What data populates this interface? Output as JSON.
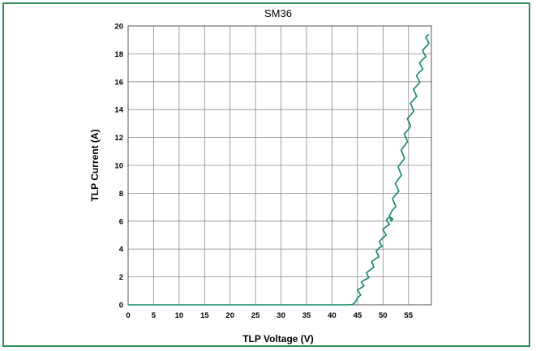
{
  "chart_data": {
    "type": "line",
    "title": "SM36",
    "xlabel": "TLP Voltage (V)",
    "ylabel": "TLP Current (A)",
    "xlim": [
      0,
      59.5
    ],
    "ylim": [
      0,
      20
    ],
    "xticks": [
      "0",
      "5",
      "10",
      "15",
      "20",
      "25",
      "30",
      "35",
      "40",
      "45",
      "50",
      "55"
    ],
    "yticks": [
      "0",
      "2",
      "4",
      "6",
      "8",
      "10",
      "12",
      "14",
      "16",
      "18",
      "20"
    ],
    "grid": true,
    "colors": {
      "series": "#15885a",
      "frame": "#2e8b57"
    },
    "series": [
      {
        "x": [
          0,
          10,
          20,
          30,
          40,
          43.5,
          44.2,
          44.6,
          45.0,
          45.3,
          45.6,
          46.0,
          46.5,
          47.0,
          47.5,
          48.0,
          48.5,
          49.0,
          49.3,
          49.6,
          50.0,
          50.3,
          50.6,
          51.0,
          51.3,
          51.6,
          51.9,
          52.2,
          52.5,
          52.8,
          53.0,
          53.3,
          53.6,
          53.9,
          54.2,
          54.5,
          54.8,
          55.1,
          55.4,
          55.7,
          56.0,
          56.3,
          56.6,
          56.9,
          57.2,
          57.5,
          57.8,
          58.1,
          58.4,
          58.7,
          59.0
        ],
        "y": [
          0,
          0,
          0,
          0,
          0,
          0,
          0.05,
          0.2,
          0.5,
          0.9,
          1.2,
          1.5,
          1.8,
          2.1,
          2.5,
          2.9,
          3.3,
          3.6,
          4.1,
          4.3,
          4.8,
          5.2,
          5.6,
          5.9,
          6.3,
          6.0,
          6.8,
          7.3,
          7.9,
          8.4,
          9.0,
          9.6,
          10.2,
          10.8,
          11.4,
          12.0,
          12.5,
          13.1,
          13.6,
          14.2,
          14.7,
          15.2,
          15.7,
          16.2,
          16.7,
          17.1,
          17.6,
          18.0,
          18.5,
          19.0,
          19.4
        ]
      }
    ]
  }
}
